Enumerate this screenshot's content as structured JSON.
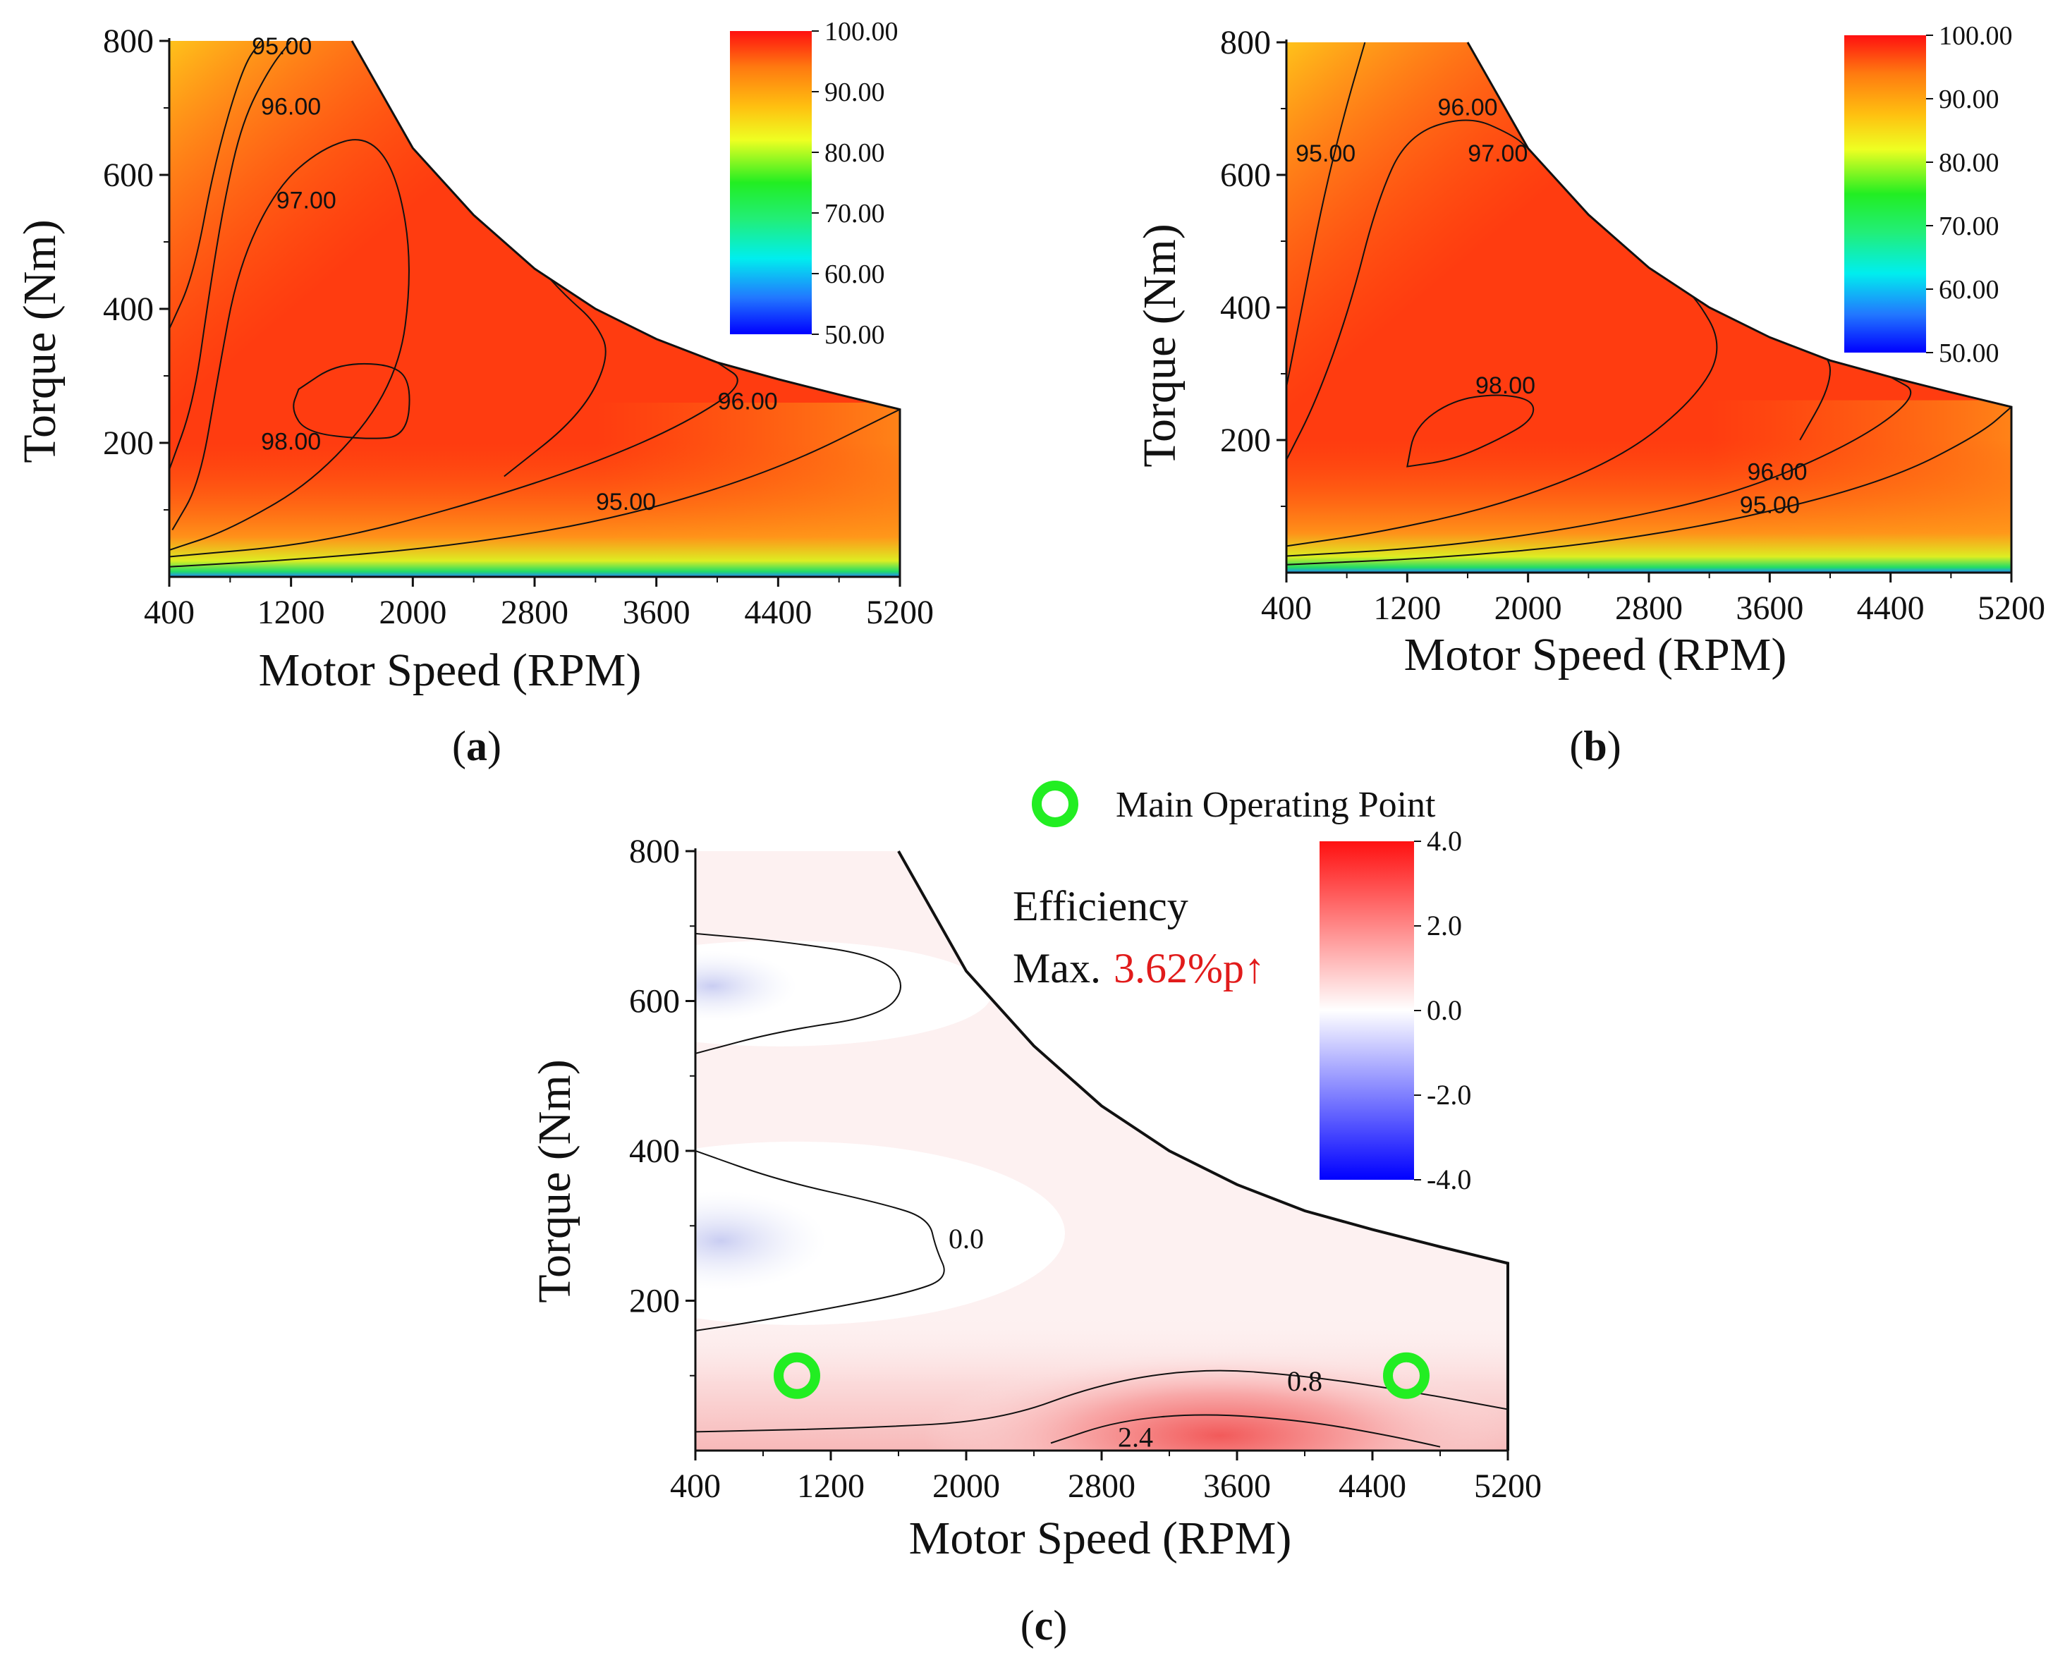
{
  "chart_data": [
    {
      "panel": "a",
      "type": "heatmap",
      "panel_label": "a",
      "xlabel": "Motor Speed (RPM)",
      "ylabel": "Torque (Nm)",
      "x_ticks": [
        "400",
        "1200",
        "2000",
        "2800",
        "3600",
        "4400",
        "5200"
      ],
      "y_ticks": [
        "200",
        "400",
        "600",
        "800"
      ],
      "xlim": [
        400,
        5200
      ],
      "ylim": [
        0,
        800
      ],
      "colorbar": {
        "min": 50,
        "max": 100,
        "ticks": [
          "100.00",
          "90.00",
          "80.00",
          "70.00",
          "60.00",
          "50.00"
        ]
      },
      "contour_labels": [
        "95.00",
        "96.00",
        "97.00",
        "98.00",
        "96.00",
        "95.00"
      ],
      "max_torque_envelope": [
        [
          400,
          800
        ],
        [
          1600,
          800
        ],
        [
          2000,
          640
        ],
        [
          2400,
          540
        ],
        [
          2800,
          460
        ],
        [
          3200,
          400
        ],
        [
          3600,
          355
        ],
        [
          4000,
          320
        ],
        [
          4400,
          295
        ],
        [
          4800,
          272
        ],
        [
          5200,
          250
        ]
      ]
    },
    {
      "panel": "b",
      "type": "heatmap",
      "panel_label": "b",
      "xlabel": "Motor Speed (RPM)",
      "ylabel": "Torque (Nm)",
      "x_ticks": [
        "400",
        "1200",
        "2000",
        "2800",
        "3600",
        "4400",
        "5200"
      ],
      "y_ticks": [
        "200",
        "400",
        "600",
        "800"
      ],
      "xlim": [
        400,
        5200
      ],
      "ylim": [
        0,
        800
      ],
      "colorbar": {
        "min": 50,
        "max": 100,
        "ticks": [
          "100.00",
          "90.00",
          "80.00",
          "70.00",
          "60.00",
          "50.00"
        ]
      },
      "contour_labels": [
        "96.00",
        "95.00",
        "97.00",
        "98.00",
        "96.00",
        "95.00"
      ],
      "max_torque_envelope": [
        [
          400,
          800
        ],
        [
          1600,
          800
        ],
        [
          2000,
          640
        ],
        [
          2400,
          540
        ],
        [
          2800,
          460
        ],
        [
          3200,
          400
        ],
        [
          3600,
          355
        ],
        [
          4000,
          320
        ],
        [
          4400,
          295
        ],
        [
          4800,
          272
        ],
        [
          5200,
          250
        ]
      ]
    },
    {
      "panel": "c",
      "type": "heatmap",
      "panel_label": "c",
      "xlabel": "Motor Speed (RPM)",
      "ylabel": "Torque (Nm)",
      "x_ticks": [
        "400",
        "1200",
        "2000",
        "2800",
        "3600",
        "4400",
        "5200"
      ],
      "y_ticks": [
        "200",
        "400",
        "600",
        "800"
      ],
      "xlim": [
        400,
        5200
      ],
      "ylim": [
        0,
        800
      ],
      "colorbar": {
        "min": -4,
        "max": 4,
        "ticks": [
          "4.0",
          "2.0",
          "0.0",
          "-2.0",
          "-4.0"
        ]
      },
      "contour_labels": [
        "0.0",
        "0.8",
        "2.4"
      ],
      "legend": {
        "label": "Main Operating Point",
        "color": "#22ee22"
      },
      "annotation": {
        "line1": "Efficiency",
        "prefix": "Max.",
        "value": "3.62%p↑",
        "value_color": "#e11b1b"
      },
      "operating_points": [
        [
          1000,
          100
        ],
        [
          4600,
          100
        ]
      ],
      "max_torque_envelope": [
        [
          400,
          800
        ],
        [
          1600,
          800
        ],
        [
          2000,
          640
        ],
        [
          2400,
          540
        ],
        [
          2800,
          460
        ],
        [
          3200,
          400
        ],
        [
          3600,
          355
        ],
        [
          4000,
          320
        ],
        [
          4400,
          295
        ],
        [
          4800,
          272
        ],
        [
          5200,
          250
        ]
      ]
    }
  ]
}
